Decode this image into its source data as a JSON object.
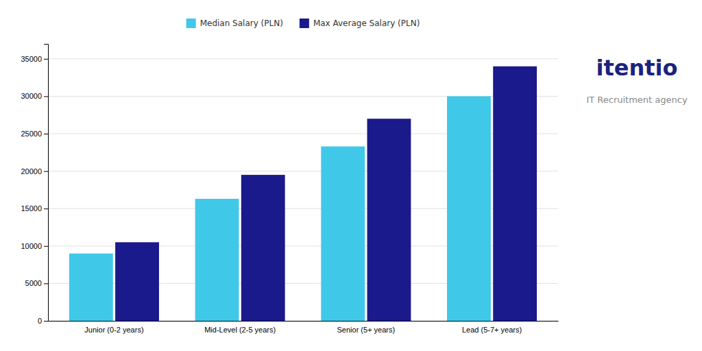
{
  "chart_data": {
    "type": "bar",
    "categories": [
      "Junior (0-2 years)",
      "Mid-Level (2-5 years)",
      "Senior (5+ years)",
      "Lead (5-7+ years)"
    ],
    "series": [
      {
        "name": "Median Salary (PLN)",
        "color": "#40C8E8",
        "values": [
          9000,
          16300,
          23300,
          30000
        ]
      },
      {
        "name": "Max Average Salary (PLN)",
        "color": "#1A1A8C",
        "values": [
          10500,
          19500,
          27000,
          34000
        ]
      }
    ],
    "ylim": [
      0,
      37000
    ],
    "yticks": [
      0,
      5000,
      10000,
      15000,
      20000,
      25000,
      30000,
      35000
    ],
    "grid": true,
    "legend": "top",
    "annotations": [
      "itentio",
      "IT Recruitment agency"
    ]
  }
}
